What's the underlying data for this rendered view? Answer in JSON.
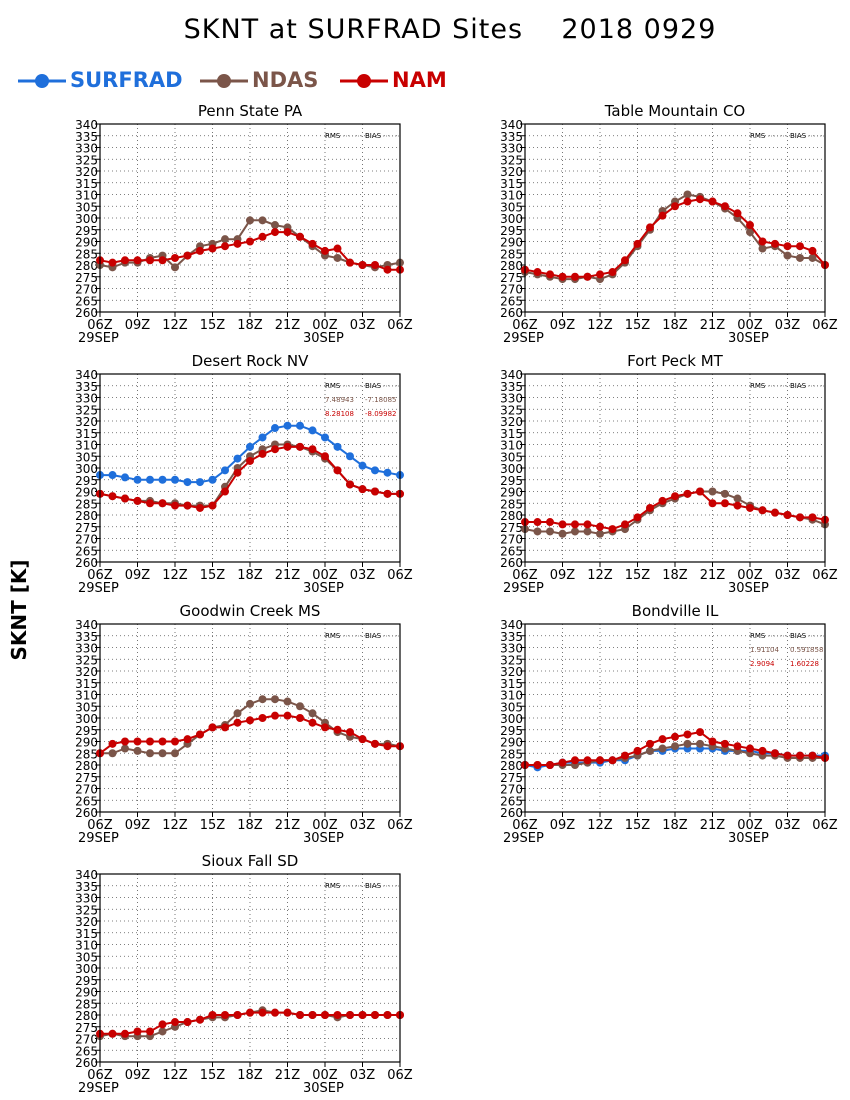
{
  "title": "SKNT at SURFRAD Sites    2018 0929",
  "y_axis_label": "SKNT [K]",
  "legend": [
    {
      "name": "SURFRAD",
      "color": "#1f6fdb"
    },
    {
      "name": "NDAS",
      "color": "#7b5549"
    },
    {
      "name": "NAM",
      "color": "#c80000"
    }
  ],
  "stat_headers": {
    "rms": "RMS",
    "bias": "BIAS"
  },
  "chart_data": [
    {
      "type": "line",
      "title": "Penn State PA",
      "x_ticks": [
        "06Z",
        "09Z",
        "12Z",
        "15Z",
        "18Z",
        "21Z",
        "00Z",
        "03Z",
        "06Z"
      ],
      "date_labels": [
        "29SEP",
        "30SEP"
      ],
      "ylim": [
        260,
        340
      ],
      "ystep": 5,
      "grid": true,
      "x": [
        6,
        7,
        8,
        9,
        10,
        11,
        12,
        13,
        14,
        15,
        16,
        17,
        18,
        19,
        20,
        21,
        22,
        23,
        24,
        25,
        26,
        27,
        28,
        29,
        30
      ],
      "stats": [],
      "series": [
        {
          "name": "NDAS",
          "values": [
            280,
            279,
            281,
            281,
            283,
            284,
            279,
            284,
            288,
            289,
            291,
            291,
            299,
            299,
            297,
            296,
            292,
            288,
            284,
            283,
            281,
            280,
            279,
            280,
            281
          ]
        },
        {
          "name": "NAM",
          "values": [
            282,
            281,
            282,
            282,
            282,
            282,
            283,
            284,
            286,
            287,
            288,
            289,
            290,
            292,
            294,
            294,
            292,
            289,
            286,
            287,
            281,
            280,
            280,
            278,
            278
          ]
        }
      ]
    },
    {
      "type": "line",
      "title": "Table Mountain CO",
      "x_ticks": [
        "06Z",
        "09Z",
        "12Z",
        "15Z",
        "18Z",
        "21Z",
        "00Z",
        "03Z",
        "06Z"
      ],
      "date_labels": [
        "29SEP",
        "30SEP"
      ],
      "ylim": [
        260,
        340
      ],
      "ystep": 5,
      "grid": true,
      "x": [
        6,
        7,
        8,
        9,
        10,
        11,
        12,
        13,
        14,
        15,
        16,
        17,
        18,
        19,
        20,
        21,
        22,
        23,
        24,
        25,
        26,
        27,
        28,
        29,
        30
      ],
      "stats": [],
      "series": [
        {
          "name": "NDAS",
          "values": [
            277,
            276,
            275,
            274,
            274,
            275,
            274,
            276,
            281,
            288,
            295,
            303,
            307,
            310,
            309,
            307,
            304,
            300,
            294,
            287,
            288,
            284,
            283,
            283,
            280
          ]
        },
        {
          "name": "NAM",
          "values": [
            278,
            277,
            276,
            275,
            275,
            275,
            276,
            277,
            282,
            289,
            296,
            301,
            305,
            307,
            308,
            307,
            305,
            302,
            297,
            290,
            289,
            288,
            288,
            286,
            280
          ]
        }
      ]
    },
    {
      "type": "line",
      "title": "Desert Rock NV",
      "x_ticks": [
        "06Z",
        "09Z",
        "12Z",
        "15Z",
        "18Z",
        "21Z",
        "00Z",
        "03Z",
        "06Z"
      ],
      "date_labels": [
        "29SEP",
        "30SEP"
      ],
      "ylim": [
        260,
        340
      ],
      "ystep": 5,
      "grid": true,
      "x": [
        6,
        7,
        8,
        9,
        10,
        11,
        12,
        13,
        14,
        15,
        16,
        17,
        18,
        19,
        20,
        21,
        22,
        23,
        24,
        25,
        26,
        27,
        28,
        29,
        30
      ],
      "stats": [
        {
          "series": "NDAS",
          "rms": "7.48943",
          "bias": "-7.18085"
        },
        {
          "series": "NAM",
          "rms": "8.28108",
          "bias": "-8.09982"
        }
      ],
      "series": [
        {
          "name": "SURFRAD",
          "values": [
            297,
            297,
            296,
            295,
            295,
            295,
            295,
            294,
            294,
            295,
            299,
            304,
            309,
            313,
            317,
            318,
            318,
            316,
            313,
            309,
            305,
            301,
            299,
            298,
            297
          ]
        },
        {
          "name": "NDAS",
          "values": [
            289,
            288,
            287,
            286,
            286,
            285,
            285,
            284,
            284,
            284,
            292,
            300,
            305,
            308,
            310,
            310,
            309,
            307,
            304,
            299,
            293,
            291,
            290,
            289,
            289
          ]
        },
        {
          "name": "NAM",
          "values": [
            289,
            288,
            287,
            286,
            285,
            285,
            284,
            284,
            283,
            284,
            290,
            298,
            303,
            306,
            308,
            309,
            309,
            308,
            305,
            299,
            293,
            291,
            290,
            289,
            289
          ]
        }
      ]
    },
    {
      "type": "line",
      "title": "Fort Peck MT",
      "x_ticks": [
        "06Z",
        "09Z",
        "12Z",
        "15Z",
        "18Z",
        "21Z",
        "00Z",
        "03Z",
        "06Z"
      ],
      "date_labels": [
        "29SEP",
        "30SEP"
      ],
      "ylim": [
        260,
        340
      ],
      "ystep": 5,
      "grid": true,
      "x": [
        6,
        7,
        8,
        9,
        10,
        11,
        12,
        13,
        14,
        15,
        16,
        17,
        18,
        19,
        20,
        21,
        22,
        23,
        24,
        25,
        26,
        27,
        28,
        29,
        30
      ],
      "stats": [],
      "series": [
        {
          "name": "NDAS",
          "values": [
            274,
            273,
            273,
            272,
            273,
            273,
            272,
            273,
            274,
            278,
            282,
            285,
            287,
            289,
            290,
            290,
            289,
            287,
            284,
            282,
            281,
            280,
            279,
            278,
            276
          ]
        },
        {
          "name": "NAM",
          "values": [
            277,
            277,
            277,
            276,
            276,
            276,
            275,
            274,
            276,
            279,
            283,
            286,
            288,
            289,
            290,
            285,
            285,
            284,
            283,
            282,
            281,
            280,
            279,
            279,
            278
          ]
        }
      ]
    },
    {
      "type": "line",
      "title": "Goodwin Creek MS",
      "x_ticks": [
        "06Z",
        "09Z",
        "12Z",
        "15Z",
        "18Z",
        "21Z",
        "00Z",
        "03Z",
        "06Z"
      ],
      "date_labels": [
        "29SEP",
        "30SEP"
      ],
      "ylim": [
        260,
        340
      ],
      "ystep": 5,
      "grid": true,
      "x": [
        6,
        7,
        8,
        9,
        10,
        11,
        12,
        13,
        14,
        15,
        16,
        17,
        18,
        19,
        20,
        21,
        22,
        23,
        24,
        25,
        26,
        27,
        28,
        29,
        30
      ],
      "stats": [],
      "series": [
        {
          "name": "NDAS",
          "values": [
            285,
            285,
            287,
            286,
            285,
            285,
            285,
            289,
            293,
            296,
            297,
            302,
            306,
            308,
            308,
            307,
            305,
            302,
            298,
            294,
            292,
            291,
            289,
            289,
            288
          ]
        },
        {
          "name": "NAM",
          "values": [
            285,
            289,
            290,
            290,
            290,
            290,
            290,
            291,
            293,
            296,
            296,
            298,
            299,
            300,
            301,
            301,
            300,
            298,
            296,
            295,
            294,
            291,
            289,
            288,
            288
          ]
        }
      ]
    },
    {
      "type": "line",
      "title": "Bondville IL",
      "x_ticks": [
        "06Z",
        "09Z",
        "12Z",
        "15Z",
        "18Z",
        "21Z",
        "00Z",
        "03Z",
        "06Z"
      ],
      "date_labels": [
        "29SEP",
        "30SEP"
      ],
      "ylim": [
        260,
        340
      ],
      "ystep": 5,
      "grid": true,
      "x": [
        6,
        7,
        8,
        9,
        10,
        11,
        12,
        13,
        14,
        15,
        16,
        17,
        18,
        19,
        20,
        21,
        22,
        23,
        24,
        25,
        26,
        27,
        28,
        29,
        30
      ],
      "stats": [
        {
          "series": "NDAS",
          "rms": "1.91104",
          "bias": "0.591858"
        },
        {
          "series": "NAM",
          "rms": "2.9094",
          "bias": "1.60228"
        }
      ],
      "series": [
        {
          "name": "SURFRAD",
          "values": [
            280,
            279,
            280,
            281,
            281,
            281,
            281,
            282,
            282,
            284,
            286,
            286,
            287,
            287,
            287,
            287,
            286,
            286,
            286,
            285,
            285,
            284,
            284,
            284,
            284
          ]
        },
        {
          "name": "NDAS",
          "values": [
            280,
            280,
            280,
            280,
            280,
            281,
            282,
            282,
            283,
            284,
            286,
            287,
            288,
            289,
            289,
            288,
            287,
            286,
            285,
            284,
            284,
            283,
            283,
            283,
            283
          ]
        },
        {
          "name": "NAM",
          "values": [
            280,
            280,
            280,
            281,
            282,
            282,
            282,
            282,
            284,
            286,
            289,
            291,
            292,
            293,
            294,
            290,
            289,
            288,
            287,
            286,
            285,
            284,
            284,
            284,
            283
          ]
        }
      ]
    },
    {
      "type": "line",
      "title": "Sioux Fall SD",
      "x_ticks": [
        "06Z",
        "09Z",
        "12Z",
        "15Z",
        "18Z",
        "21Z",
        "00Z",
        "03Z",
        "06Z"
      ],
      "date_labels": [
        "29SEP",
        "30SEP"
      ],
      "ylim": [
        260,
        340
      ],
      "ystep": 5,
      "grid": true,
      "x": [
        6,
        7,
        8,
        9,
        10,
        11,
        12,
        13,
        14,
        15,
        16,
        17,
        18,
        19,
        20,
        21,
        22,
        23,
        24,
        25,
        26,
        27,
        28,
        29,
        30
      ],
      "stats": [],
      "series": [
        {
          "name": "NDAS",
          "values": [
            271,
            272,
            271,
            271,
            271,
            273,
            275,
            277,
            278,
            279,
            279,
            280,
            281,
            282,
            281,
            281,
            280,
            280,
            280,
            279,
            280,
            280,
            280,
            280,
            280
          ]
        },
        {
          "name": "NAM",
          "values": [
            272,
            272,
            272,
            273,
            273,
            276,
            277,
            277,
            278,
            280,
            280,
            280,
            281,
            281,
            281,
            281,
            280,
            280,
            280,
            280,
            280,
            280,
            280,
            280,
            280
          ]
        }
      ]
    }
  ]
}
